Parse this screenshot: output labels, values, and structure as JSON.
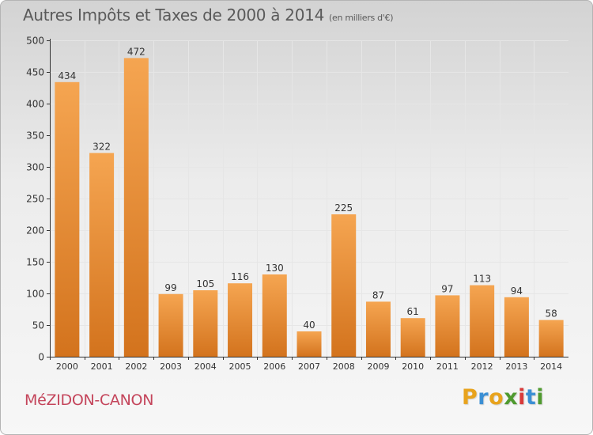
{
  "title": "Autres Impôts et Taxes de 2000 à 2014",
  "unit": "(en milliers d'€)",
  "commune": "MéZIDON-CANON",
  "logo": {
    "letters": [
      "P",
      "r",
      "o",
      "x",
      "i",
      "t",
      "i"
    ],
    "colors": [
      "#e8a31d",
      "#3b8fd4",
      "#e8a31d",
      "#4f9a2f",
      "#d93a3a",
      "#3b8fd4",
      "#4f9a2f"
    ]
  },
  "colors": {
    "bar_top": "#f5a551",
    "bar_bottom": "#d3731d",
    "grid": "#e6e6e6",
    "axis": "#333333",
    "text": "#333333"
  },
  "chart_data": {
    "type": "bar",
    "title": "Autres Impôts et Taxes de 2000 à 2014",
    "ylabel": "",
    "xlabel": "",
    "categories": [
      "2000",
      "2001",
      "2002",
      "2003",
      "2004",
      "2005",
      "2006",
      "2007",
      "2008",
      "2009",
      "2010",
      "2011",
      "2012",
      "2013",
      "2014"
    ],
    "values": [
      434,
      322,
      472,
      99,
      105,
      116,
      130,
      40,
      225,
      87,
      61,
      97,
      113,
      94,
      58
    ],
    "ylim": [
      0,
      500
    ],
    "yticks": [
      0,
      50,
      100,
      150,
      200,
      250,
      300,
      350,
      400,
      450,
      500
    ],
    "grid": true
  }
}
